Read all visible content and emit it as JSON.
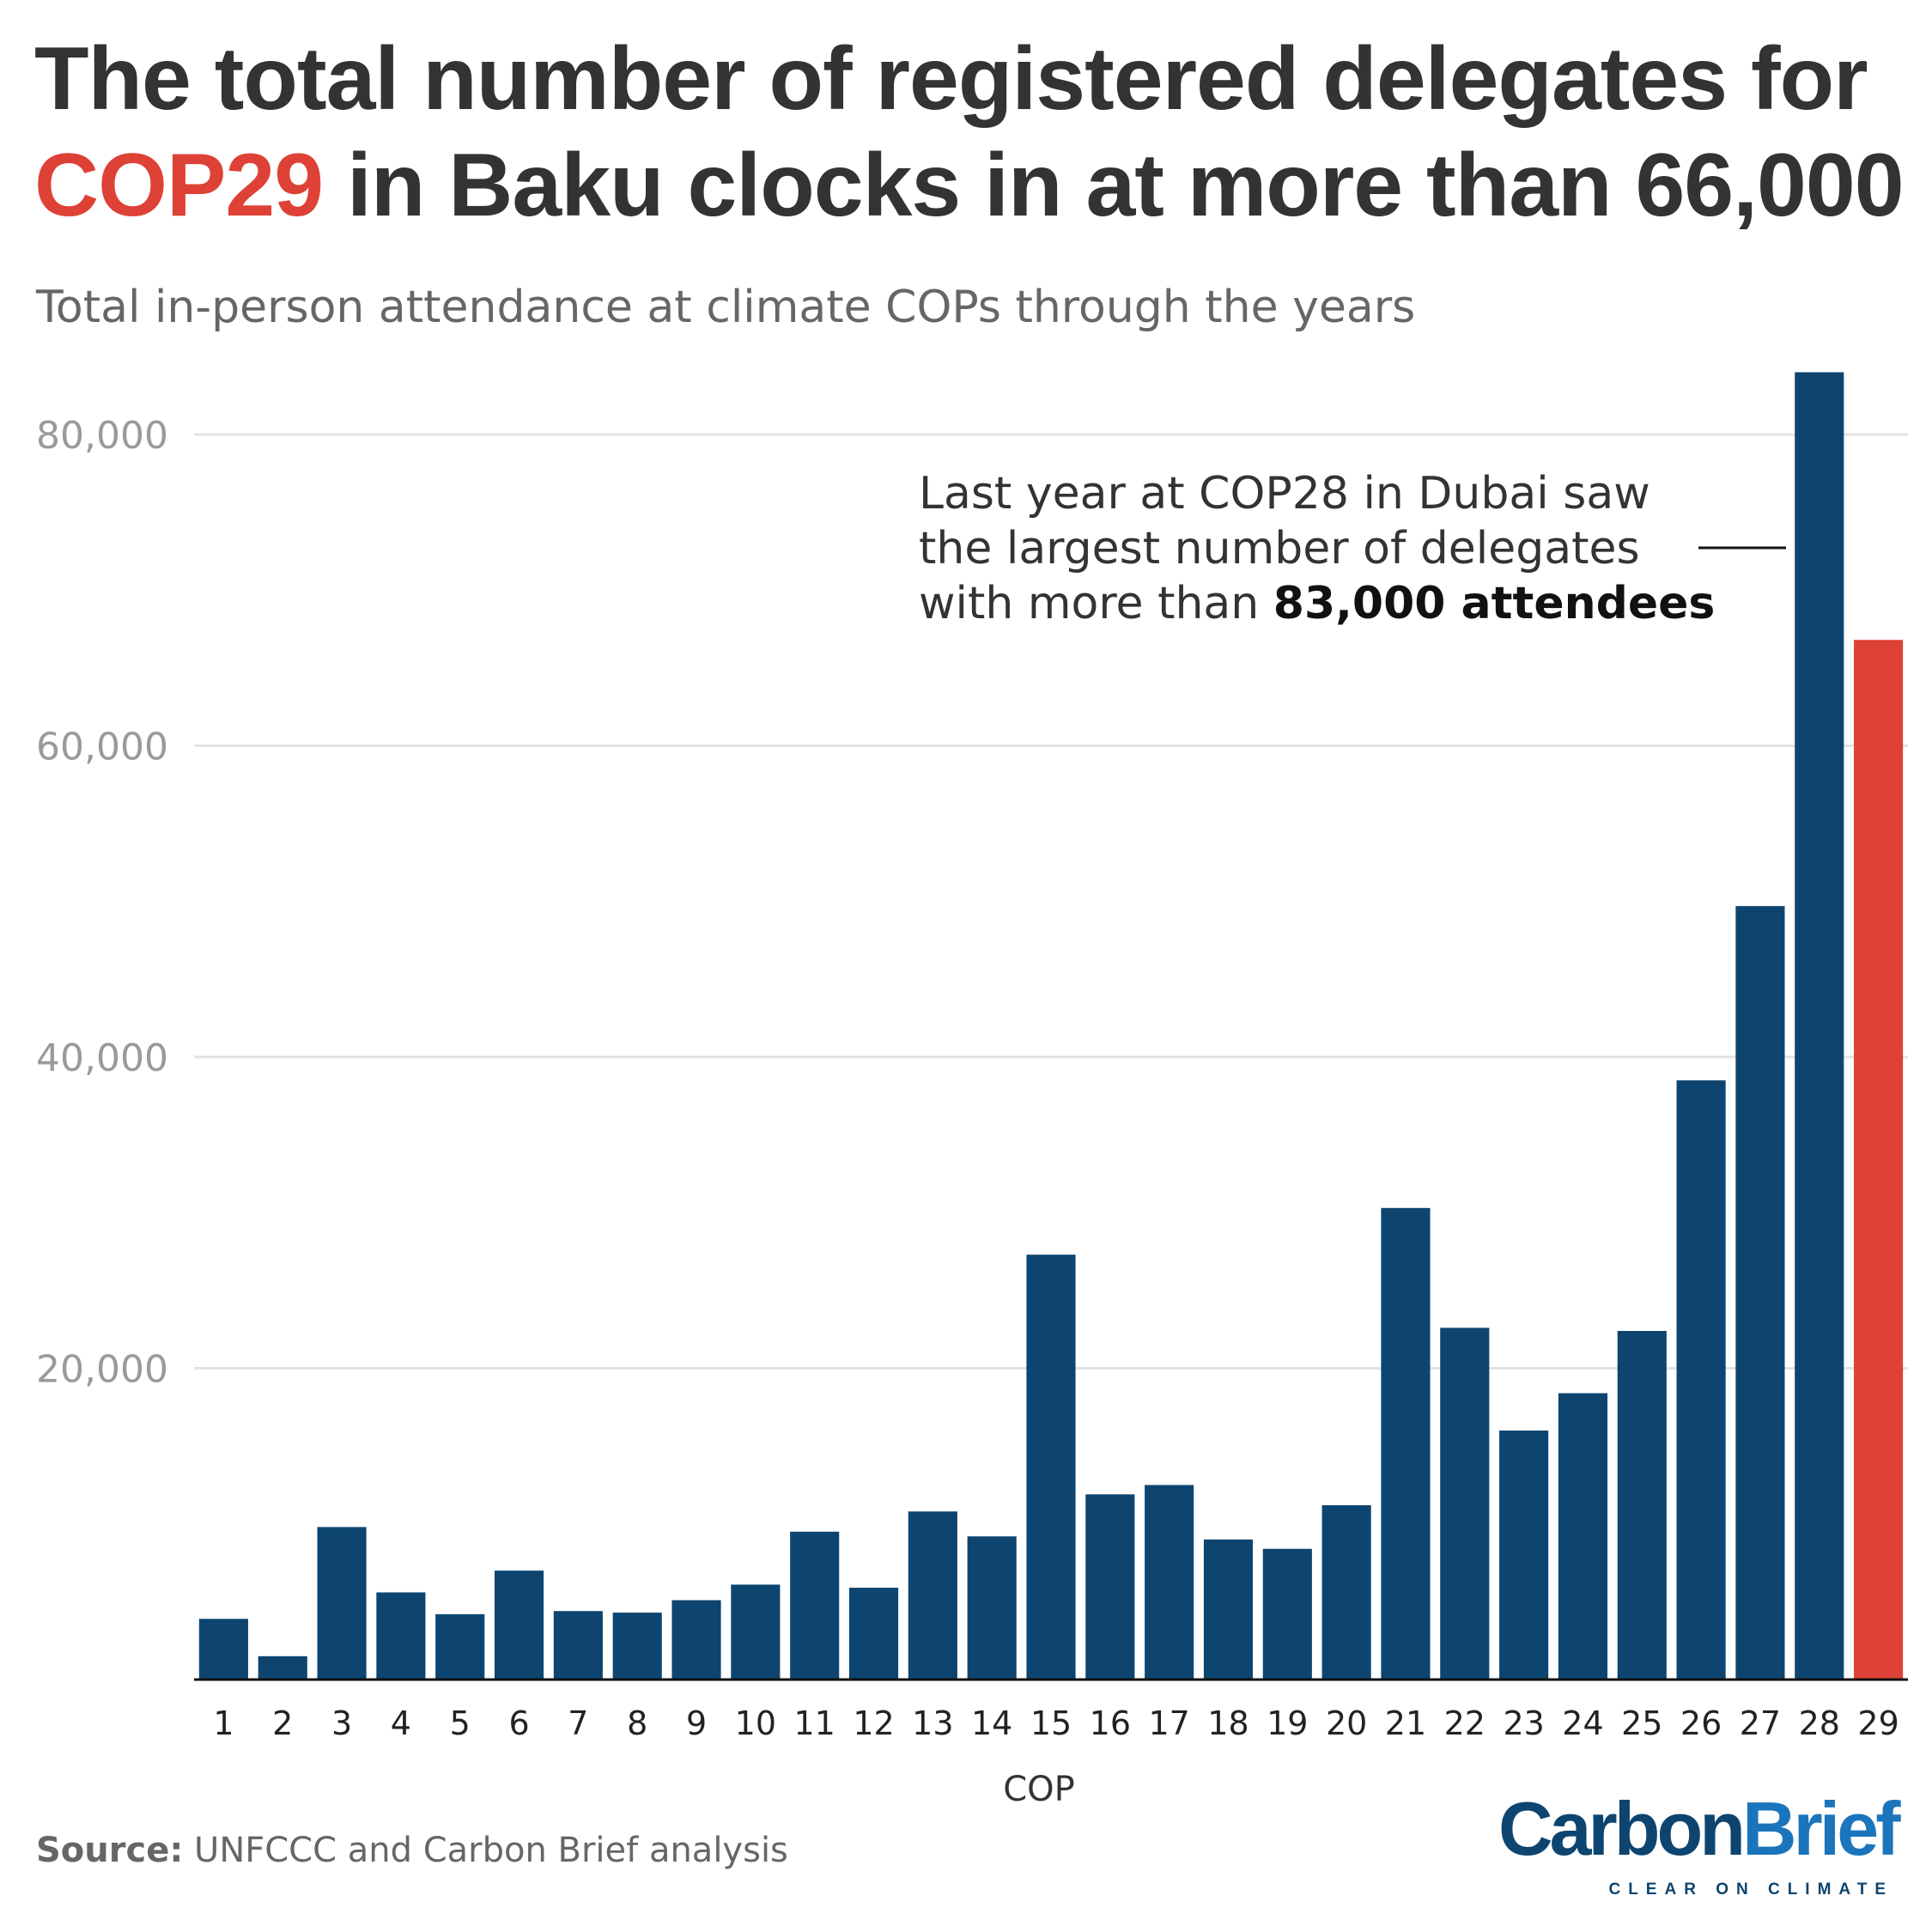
{
  "header": {
    "title_part1": "The total number of registered delegates for",
    "title_highlight": "COP29",
    "title_part2": " in Baku clocks in at more than 66,000",
    "subtitle": "Total in-person attendance at climate COPs through the years",
    "highlight_color": "#de4136"
  },
  "annotation": {
    "line1": "Last year at COP28 in Dubai saw",
    "line2": "the largest number of delegates",
    "line3_prefix": "with more than ",
    "line3_bold": "83,000 attendees"
  },
  "footer": {
    "source_label": "Source:",
    "source_text": " UNFCCC and Carbon Brief analysis",
    "logo_carbon": "Carbon",
    "logo_brief": "Brief",
    "logo_tagline": "CLEAR ON CLIMATE"
  },
  "chart_data": {
    "type": "bar",
    "xlabel": "COP",
    "ylabel": "",
    "ylim": [
      0,
      80000
    ],
    "yticks": [
      20000,
      40000,
      60000,
      80000
    ],
    "ytick_labels": [
      "20,000",
      "40,000",
      "60,000",
      "80,000"
    ],
    "grid": true,
    "categories": [
      "1",
      "2",
      "3",
      "4",
      "5",
      "6",
      "7",
      "8",
      "9",
      "10",
      "11",
      "12",
      "13",
      "14",
      "15",
      "16",
      "17",
      "18",
      "19",
      "20",
      "21",
      "22",
      "23",
      "24",
      "25",
      "26",
      "27",
      "28",
      "29"
    ],
    "values": [
      3900,
      1500,
      9800,
      5600,
      4200,
      7000,
      4400,
      4300,
      5100,
      6100,
      9500,
      5900,
      10800,
      9200,
      27300,
      11900,
      12500,
      9000,
      8400,
      11200,
      30300,
      22600,
      16000,
      18400,
      22400,
      38500,
      49700,
      84000,
      66800
    ],
    "colors": {
      "default": "#0d4570",
      "highlight": "#de4136",
      "highlight_category": "29",
      "grid": "#e3e3e3",
      "tick_label": "#9a9a9a",
      "axis": "#111111"
    }
  }
}
